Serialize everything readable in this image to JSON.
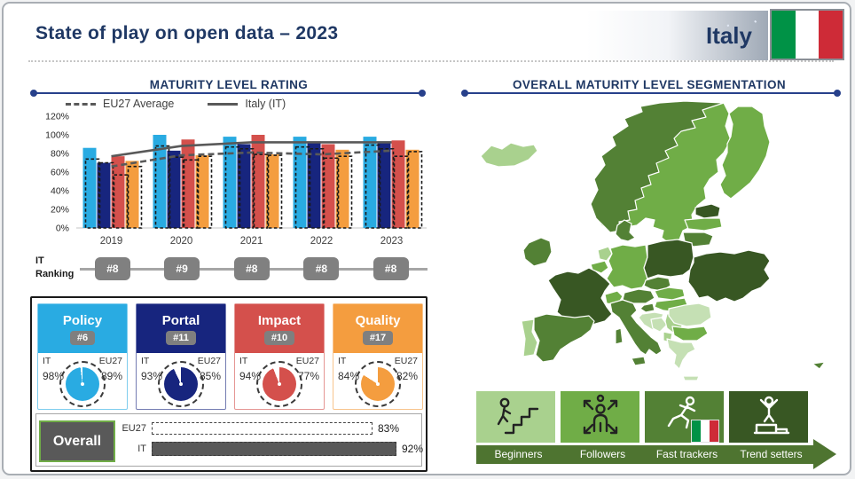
{
  "header": {
    "title": "State of play on open data – 2023",
    "country_label": "Italy"
  },
  "left_section": {
    "title": "MATURITY LEVEL RATING",
    "ranking_label_1": "IT",
    "ranking_label_2": "Ranking",
    "rankings": [
      "#8",
      "#9",
      "#8",
      "#8",
      "#8"
    ]
  },
  "chart_data": {
    "type": "bar",
    "title": "MATURITY LEVEL RATING",
    "categories": [
      "2019",
      "2020",
      "2021",
      "2022",
      "2023"
    ],
    "yticks": [
      "0%",
      "20%",
      "40%",
      "60%",
      "80%",
      "100%",
      "120%"
    ],
    "ylim": [
      0,
      120
    ],
    "series": [
      {
        "name": "Policy (IT)",
        "color": "#29abe2",
        "values": [
          86,
          100,
          98,
          98,
          98
        ]
      },
      {
        "name": "Portal (IT)",
        "color": "#17257e",
        "values": [
          70,
          83,
          90,
          93,
          93
        ]
      },
      {
        "name": "Impact (IT)",
        "color": "#d4504c",
        "values": [
          77,
          95,
          100,
          90,
          94
        ]
      },
      {
        "name": "Quality (IT)",
        "color": "#f49d3f",
        "values": [
          72,
          78,
          79,
          84,
          84
        ]
      }
    ],
    "eu27_overlay_series": [
      {
        "name": "Policy (EU27)",
        "values": [
          74,
          88,
          87,
          87,
          89
        ]
      },
      {
        "name": "Portal (EU27)",
        "values": [
          70,
          76,
          85,
          85,
          85
        ]
      },
      {
        "name": "Impact (EU27)",
        "values": [
          57,
          73,
          79,
          75,
          77
        ]
      },
      {
        "name": "Quality (EU27)",
        "values": [
          66,
          77,
          78,
          77,
          82
        ]
      }
    ],
    "lines": [
      {
        "name": "EU27 Average",
        "style": "dashed",
        "color": "#595959",
        "values": [
          66,
          78,
          81,
          79,
          83
        ]
      },
      {
        "name": "Italy (IT)",
        "style": "solid",
        "color": "#595959",
        "values": [
          77,
          88,
          92,
          92,
          92
        ]
      }
    ],
    "legend_position": "top"
  },
  "cards": [
    {
      "title": "Policy",
      "rank": "#6",
      "it_label": "IT",
      "eu_label": "EU27",
      "it_value": "98%",
      "eu_value": "89%",
      "it_pct": 98,
      "color": "#29abe2"
    },
    {
      "title": "Portal",
      "rank": "#11",
      "it_label": "IT",
      "eu_label": "EU27",
      "it_value": "93%",
      "eu_value": "85%",
      "it_pct": 93,
      "color": "#17257e"
    },
    {
      "title": "Impact",
      "rank": "#10",
      "it_label": "IT",
      "eu_label": "EU27",
      "it_value": "94%",
      "eu_value": "77%",
      "it_pct": 94,
      "color": "#d4504c"
    },
    {
      "title": "Quality",
      "rank": "#17",
      "it_label": "IT",
      "eu_label": "EU27",
      "it_value": "84%",
      "eu_value": "82%",
      "it_pct": 84,
      "color": "#f49d3f"
    }
  ],
  "overall": {
    "label": "Overall",
    "rows": [
      {
        "label": "EU27",
        "value": 83,
        "display": "83%",
        "style": "dashed"
      },
      {
        "label": "IT",
        "value": 92,
        "display": "92%",
        "style": "solid"
      }
    ]
  },
  "right_section": {
    "title": "OVERALL MATURITY LEVEL SEGMENTATION",
    "segments": [
      {
        "label": "Beginners",
        "color": "#a9d18e",
        "icon": "stairs-climber-icon",
        "has_flag": false
      },
      {
        "label": "Followers",
        "color": "#70ad47",
        "icon": "expanding-person-icon",
        "has_flag": false
      },
      {
        "label": "Fast trackers",
        "color": "#538135",
        "icon": "running-person-icon",
        "has_flag": true
      },
      {
        "label": "Trend setters",
        "color": "#385723",
        "icon": "podium-winner-icon",
        "has_flag": false
      }
    ],
    "flag_country": "Italy"
  },
  "map_palette": {
    "very_light": "#c5e0b4",
    "light": "#a9d18e",
    "medium": "#70ad47",
    "dark": "#538135",
    "very_dark": "#385723"
  }
}
